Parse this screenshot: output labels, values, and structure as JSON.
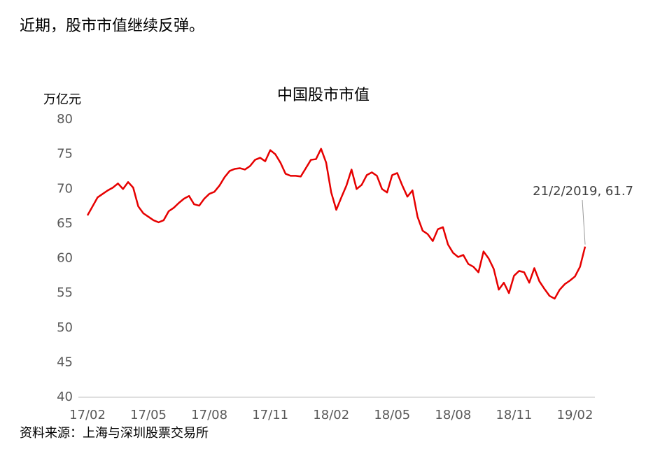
{
  "heading": "近期，股市市值继续反弹。",
  "chart_data": {
    "type": "line",
    "title": "中国股市市值",
    "y_label": "万亿元",
    "categories": [
      "17/02",
      null,
      null,
      null,
      null,
      null,
      null,
      null,
      null,
      null,
      null,
      null,
      "17/05",
      null,
      null,
      null,
      null,
      null,
      null,
      null,
      null,
      null,
      null,
      null,
      "17/08",
      null,
      null,
      null,
      null,
      null,
      null,
      null,
      null,
      null,
      null,
      null,
      "17/11",
      null,
      null,
      null,
      null,
      null,
      null,
      null,
      null,
      null,
      null,
      null,
      "18/02",
      null,
      null,
      null,
      null,
      null,
      null,
      null,
      null,
      null,
      null,
      null,
      "18/05",
      null,
      null,
      null,
      null,
      null,
      null,
      null,
      null,
      null,
      null,
      null,
      "18/08",
      null,
      null,
      null,
      null,
      null,
      null,
      null,
      null,
      null,
      null,
      null,
      "18/11",
      null,
      null,
      null,
      null,
      null,
      null,
      null,
      null,
      null,
      null,
      null,
      "19/02",
      null,
      null
    ],
    "series": [
      {
        "name": "中国股市市值",
        "color": "#e60000",
        "values": [
          66.2,
          67.5,
          68.8,
          69.3,
          69.8,
          70.2,
          70.8,
          70.0,
          71.0,
          70.2,
          67.5,
          66.5,
          66.0,
          65.5,
          65.2,
          65.5,
          66.8,
          67.3,
          68.0,
          68.6,
          69.0,
          67.8,
          67.6,
          68.6,
          69.3,
          69.6,
          70.5,
          71.7,
          72.6,
          72.9,
          73.0,
          72.8,
          73.3,
          74.2,
          74.5,
          74.0,
          75.6,
          75.0,
          73.8,
          72.2,
          71.9,
          71.9,
          71.8,
          73.0,
          74.2,
          74.3,
          75.8,
          73.8,
          69.5,
          67.0,
          68.8,
          70.5,
          72.8,
          70.0,
          70.6,
          72.0,
          72.4,
          71.9,
          70.0,
          69.5,
          72.0,
          72.3,
          70.5,
          68.9,
          69.8,
          66.0,
          64.0,
          63.5,
          62.5,
          64.2,
          64.5,
          62.0,
          60.8,
          60.2,
          60.5,
          59.2,
          58.8,
          58.0,
          61.0,
          60.0,
          58.5,
          55.5,
          56.5,
          55.0,
          57.5,
          58.2,
          58.0,
          56.5,
          58.6,
          56.7,
          55.6,
          54.6,
          54.2,
          55.5,
          56.3,
          56.8,
          57.4,
          58.8,
          61.7
        ]
      }
    ],
    "annotation": "21/2/2019, 61.7",
    "ylim": [
      40,
      80
    ],
    "yticks": [
      40,
      45,
      50,
      55,
      60,
      65,
      70,
      75,
      80
    ],
    "grid": false
  },
  "source": "资料来源：上海与深圳股票交易所"
}
